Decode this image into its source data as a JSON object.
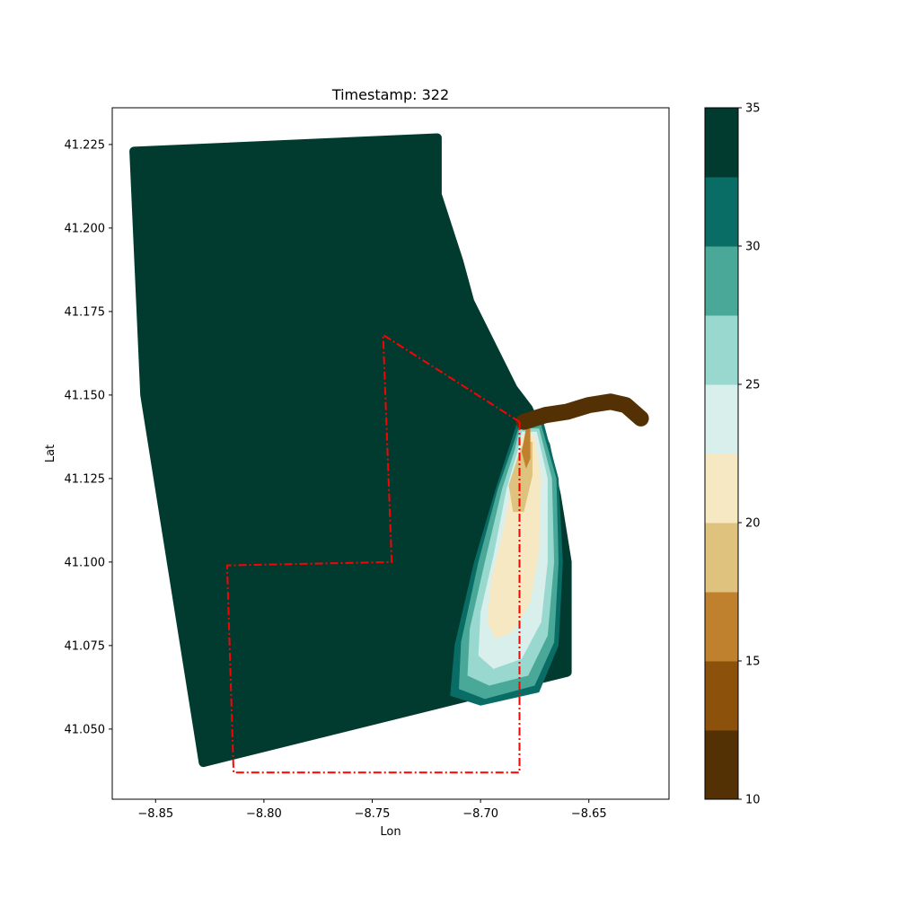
{
  "chart_data": {
    "type": "scatter",
    "title": "Timestamp: 322",
    "xlabel": "Lon",
    "ylabel": "Lat",
    "xlim": [
      -8.87,
      -8.613
    ],
    "ylim": [
      41.029,
      41.236
    ],
    "xticks": [
      -8.85,
      -8.8,
      -8.75,
      -8.7,
      -8.65
    ],
    "xtick_labels": [
      "−8.85",
      "−8.80",
      "−8.75",
      "−8.70",
      "−8.65"
    ],
    "yticks": [
      41.05,
      41.075,
      41.1,
      41.125,
      41.15,
      41.175,
      41.2,
      41.225
    ],
    "ytick_labels": [
      "41.050",
      "41.075",
      "41.100",
      "41.125",
      "41.150",
      "41.175",
      "41.200",
      "41.225"
    ],
    "grid": false,
    "colorbar": {
      "min": 10,
      "max": 35,
      "ticks": [
        10,
        15,
        20,
        25,
        30,
        35
      ],
      "tick_labels": [
        "10",
        "15",
        "20",
        "25",
        "30",
        "35"
      ],
      "levels": [
        10,
        12.5,
        15,
        17.5,
        20,
        22.5,
        25,
        27.5,
        30,
        32.5,
        35
      ],
      "colors": [
        "#543005",
        "#8c510a",
        "#bf812d",
        "#dfc27d",
        "#f6e8c3",
        "#d8efec",
        "#98d8cf",
        "#49a898",
        "#0a6d65",
        "#013b30"
      ]
    },
    "domain_polygon": [
      [
        -8.86,
        41.223
      ],
      [
        -8.72,
        41.227
      ],
      [
        -8.72,
        41.21
      ],
      [
        -8.71,
        41.19
      ],
      [
        -8.705,
        41.178
      ],
      [
        -8.695,
        41.165
      ],
      [
        -8.685,
        41.152
      ],
      [
        -8.678,
        41.146
      ],
      [
        -8.67,
        41.135
      ],
      [
        -8.665,
        41.12
      ],
      [
        -8.66,
        41.1
      ],
      [
        -8.66,
        41.067
      ],
      [
        -8.828,
        41.04
      ],
      [
        -8.855,
        41.15
      ]
    ],
    "plume_bands": [
      {
        "level": 30,
        "polygon": [
          [
            -8.683,
            41.142
          ],
          [
            -8.671,
            41.142
          ],
          [
            -8.664,
            41.125
          ],
          [
            -8.662,
            41.1
          ],
          [
            -8.664,
            41.075
          ],
          [
            -8.673,
            41.061
          ],
          [
            -8.7,
            41.057
          ],
          [
            -8.714,
            41.06
          ],
          [
            -8.712,
            41.075
          ],
          [
            -8.703,
            41.1
          ],
          [
            -8.693,
            41.122
          ],
          [
            -8.686,
            41.136
          ]
        ]
      },
      {
        "level": 27.5,
        "polygon": [
          [
            -8.682,
            41.141
          ],
          [
            -8.672,
            41.141
          ],
          [
            -8.665,
            41.125
          ],
          [
            -8.664,
            41.1
          ],
          [
            -8.666,
            41.076
          ],
          [
            -8.675,
            41.063
          ],
          [
            -8.698,
            41.059
          ],
          [
            -8.71,
            41.062
          ],
          [
            -8.709,
            41.076
          ],
          [
            -8.701,
            41.1
          ],
          [
            -8.692,
            41.122
          ],
          [
            -8.685,
            41.135
          ]
        ]
      },
      {
        "level": 25,
        "polygon": [
          [
            -8.682,
            41.14
          ],
          [
            -8.673,
            41.14
          ],
          [
            -8.667,
            41.125
          ],
          [
            -8.666,
            41.1
          ],
          [
            -8.669,
            41.078
          ],
          [
            -8.678,
            41.066
          ],
          [
            -8.696,
            41.063
          ],
          [
            -8.706,
            41.066
          ],
          [
            -8.705,
            41.08
          ],
          [
            -8.698,
            41.1
          ],
          [
            -8.69,
            41.122
          ],
          [
            -8.684,
            41.134
          ]
        ]
      },
      {
        "level": 22.5,
        "polygon": [
          [
            -8.681,
            41.139
          ],
          [
            -8.674,
            41.139
          ],
          [
            -8.669,
            41.125
          ],
          [
            -8.669,
            41.1
          ],
          [
            -8.672,
            41.082
          ],
          [
            -8.681,
            41.071
          ],
          [
            -8.694,
            41.068
          ],
          [
            -8.701,
            41.072
          ],
          [
            -8.7,
            41.085
          ],
          [
            -8.694,
            41.102
          ],
          [
            -8.688,
            41.122
          ],
          [
            -8.683,
            41.133
          ]
        ]
      },
      {
        "level": 20,
        "polygon": [
          [
            -8.681,
            41.138
          ],
          [
            -8.675,
            41.138
          ],
          [
            -8.672,
            41.125
          ],
          [
            -8.673,
            41.103
          ],
          [
            -8.677,
            41.088
          ],
          [
            -8.685,
            41.079
          ],
          [
            -8.693,
            41.077
          ],
          [
            -8.697,
            41.082
          ],
          [
            -8.695,
            41.095
          ],
          [
            -8.69,
            41.108
          ],
          [
            -8.686,
            41.122
          ],
          [
            -8.682,
            41.132
          ]
        ]
      },
      {
        "level": 17.5,
        "polygon": [
          [
            -8.68,
            41.136
          ],
          [
            -8.676,
            41.136
          ],
          [
            -8.676,
            41.126
          ],
          [
            -8.68,
            41.115
          ],
          [
            -8.685,
            41.115
          ],
          [
            -8.687,
            41.123
          ],
          [
            -8.683,
            41.131
          ]
        ]
      },
      {
        "level": 15,
        "polygon": [
          [
            -8.679,
            41.14
          ],
          [
            -8.677,
            41.14
          ],
          [
            -8.677,
            41.131
          ],
          [
            -8.679,
            41.128
          ],
          [
            -8.681,
            41.133
          ]
        ]
      }
    ],
    "river_band": {
      "level": 10,
      "polyline": [
        [
          -8.68,
          41.142
        ],
        [
          -8.67,
          41.144
        ],
        [
          -8.66,
          41.145
        ],
        [
          -8.65,
          41.147
        ],
        [
          -8.64,
          41.148
        ],
        [
          -8.633,
          41.147
        ],
        [
          -8.626,
          41.143
        ]
      ]
    },
    "red_boundary": [
      [
        -8.682,
        41.142
      ],
      [
        -8.745,
        41.168
      ],
      [
        -8.741,
        41.1
      ],
      [
        -8.817,
        41.099
      ],
      [
        -8.814,
        41.037
      ],
      [
        -8.682,
        41.037
      ],
      [
        -8.682,
        41.142
      ]
    ],
    "boundary_color": "#ff0000"
  }
}
